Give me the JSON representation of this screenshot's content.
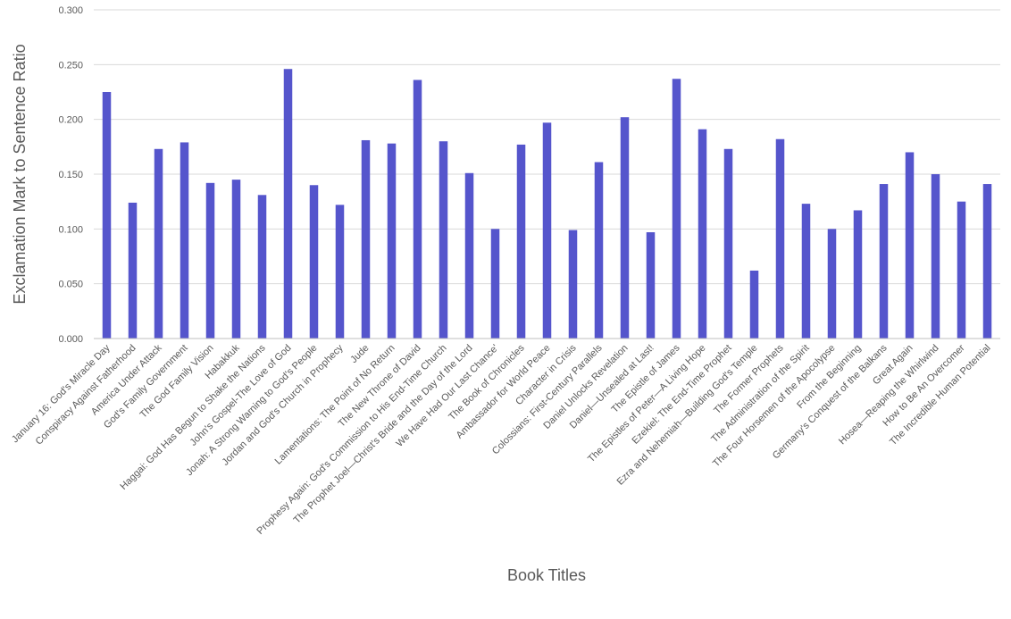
{
  "chart_data": {
    "type": "bar",
    "title": "",
    "xlabel": "Book Titles",
    "ylabel": "Exclamation Mark to Sentence Ratio",
    "ylim": [
      0,
      0.3
    ],
    "yticks": [
      "0.000",
      "0.050",
      "0.100",
      "0.150",
      "0.200",
      "0.250",
      "0.300"
    ],
    "grid": true,
    "legend": "none",
    "bar_color": "#5555cc",
    "grid_color": "#d9d9d9",
    "axis_color": "#bfbfbf",
    "text_color": "#595959",
    "categories": [
      "January 16: God's Miracle Day",
      "Conspiracy Against Fatherhood",
      "America Under Attack",
      "God's Family Government",
      "The God Family Vision",
      "Habakkuk",
      "Haggai: God Has Begun to Shake the Nations",
      "John's Gospel-The Love of God",
      "Jonah: A Strong Warning to God's People",
      "Jordan and God's Church in Prophecy",
      "Jude",
      "Lamentations: The Point of No Return",
      "The New Throne of David",
      "Prophesy Again: God's Commission to His End-Time Church",
      "The Prophet Joel—Christ's Bride and the Day of the Lord",
      "We Have Had Our Last Chance'",
      "The Book of Chronicles",
      "Ambassador for World Peace",
      "Character in Crisis",
      "Colossians: First-Century Parallels",
      "Daniel Unlocks Revelation",
      "Daniel—Unsealed at Last!",
      "The Epistle of James",
      "The Epistles of Peter—A Living Hope",
      "Ezekiel: The End-Time Prophet",
      "Ezra and Nehemiah—Building God's Temple",
      "The Former Prophets",
      "The Administration of the Spirit",
      "The Four Horsemen of the Apocolypse",
      "From the Beginning",
      "Germany's Conquest of the Balkans",
      "Great Again",
      "Hosea—Reaping the Whirlwind",
      "How to Be An Overcomer",
      "The Incredible Human Potential"
    ],
    "values": [
      0.225,
      0.124,
      0.173,
      0.179,
      0.142,
      0.145,
      0.131,
      0.246,
      0.14,
      0.122,
      0.181,
      0.178,
      0.236,
      0.18,
      0.151,
      0.1,
      0.177,
      0.197,
      0.099,
      0.161,
      0.202,
      0.097,
      0.237,
      0.191,
      0.173,
      0.062,
      0.182,
      0.123,
      0.1,
      0.117,
      0.141,
      0.17,
      0.15,
      0.125,
      0.141
    ]
  }
}
